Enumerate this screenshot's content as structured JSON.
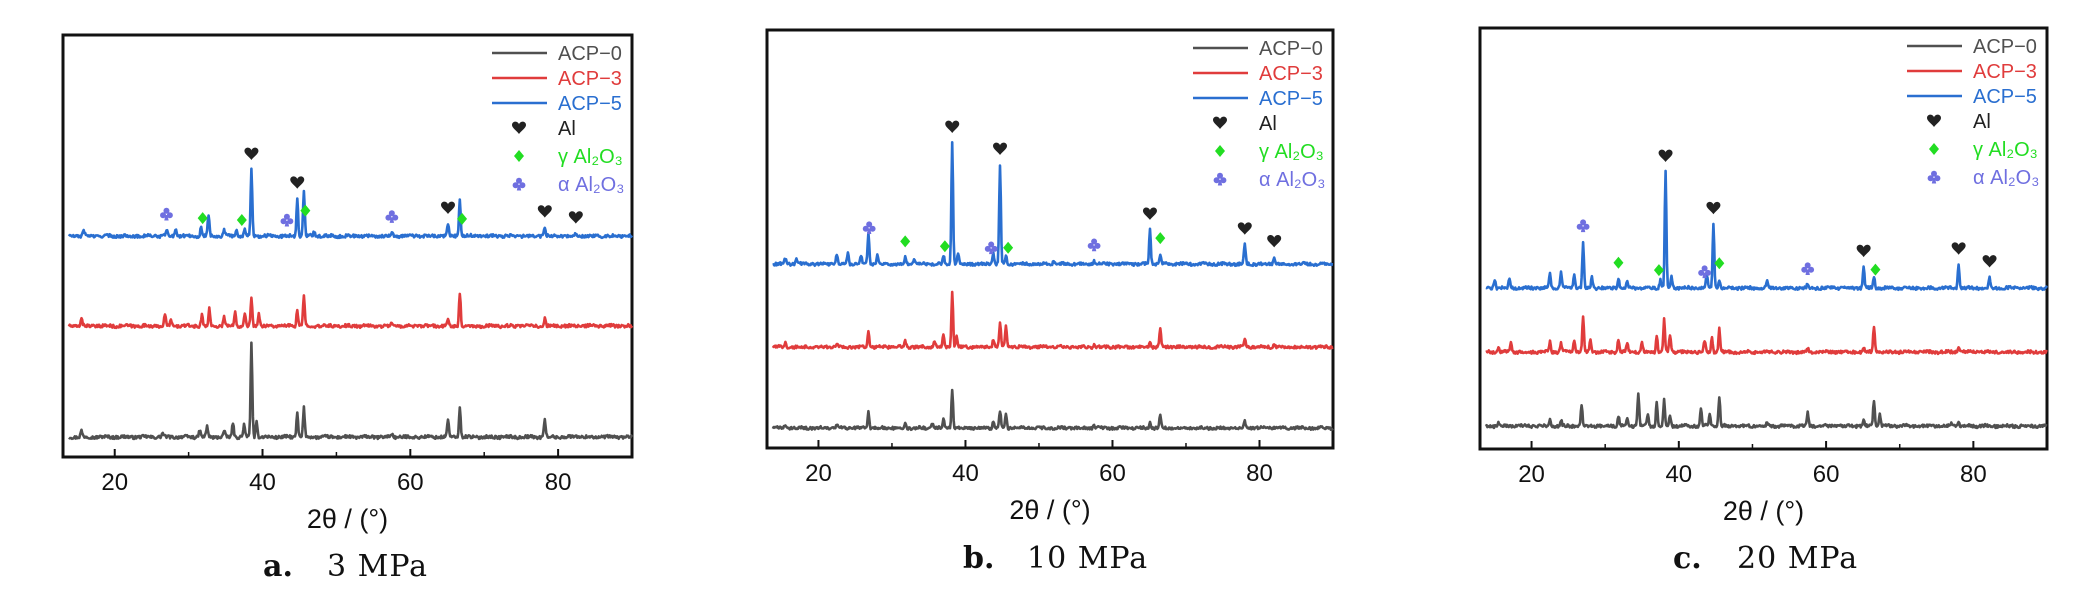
{
  "figure": {
    "x_title": "2θ / (°)"
  },
  "legend": {
    "series": [
      {
        "label": "ACP−0",
        "color": "#505050"
      },
      {
        "label": "ACP−3",
        "color": "#e03c3c"
      },
      {
        "label": "ACP−5",
        "color": "#2a6fd0"
      }
    ],
    "phases": [
      {
        "label": "Al",
        "icon": "heart-icon",
        "color": "#222222"
      },
      {
        "label": "γ Al₂O₃",
        "icon": "diamond-icon",
        "color": "#22dd22"
      },
      {
        "label": "α Al₂O₃",
        "icon": "club-icon",
        "color": "#6f6fe0"
      }
    ]
  },
  "chart_data": [
    {
      "type": "line",
      "panel_letter": "a.",
      "caption": "3 MPa",
      "xlabel": "2θ / (°)",
      "xlim": [
        13,
        90
      ],
      "xticks": [
        20,
        40,
        60,
        80
      ],
      "y_axis": "offset intensity, arbitrary units (no tick labels)",
      "series": [
        {
          "name": "ACP−0",
          "peaks": [
            [
              15.5,
              0.1
            ],
            [
              26.5,
              0.06
            ],
            [
              31.5,
              0.12
            ],
            [
              32.5,
              0.18
            ],
            [
              34.8,
              0.1
            ],
            [
              36.0,
              0.25
            ],
            [
              37.5,
              0.2
            ],
            [
              38.5,
              1.55
            ],
            [
              39.2,
              0.25
            ],
            [
              44.7,
              0.4
            ],
            [
              45.6,
              0.48
            ],
            [
              57.5,
              0.06
            ],
            [
              65.1,
              0.3
            ],
            [
              66.7,
              0.48
            ],
            [
              78.2,
              0.3
            ],
            [
              82.4,
              0.05
            ]
          ]
        },
        {
          "name": "ACP−3",
          "peaks": [
            [
              15.5,
              0.14
            ],
            [
              26.8,
              0.18
            ],
            [
              27.6,
              0.1
            ],
            [
              31.8,
              0.18
            ],
            [
              32.8,
              0.28
            ],
            [
              34.8,
              0.16
            ],
            [
              36.3,
              0.26
            ],
            [
              37.6,
              0.22
            ],
            [
              38.5,
              0.45
            ],
            [
              39.5,
              0.22
            ],
            [
              44.7,
              0.26
            ],
            [
              45.6,
              0.52
            ],
            [
              57.5,
              0.06
            ],
            [
              65.1,
              0.1
            ],
            [
              66.7,
              0.55
            ],
            [
              78.2,
              0.12
            ]
          ]
        },
        {
          "name": "ACP−5",
          "peaks": [
            [
              15.8,
              0.1
            ],
            [
              27.0,
              0.1
            ],
            [
              28.3,
              0.12
            ],
            [
              31.7,
              0.15
            ],
            [
              32.7,
              0.35
            ],
            [
              34.8,
              0.1
            ],
            [
              36.5,
              0.1
            ],
            [
              37.6,
              0.12
            ],
            [
              38.5,
              1.1
            ],
            [
              44.7,
              0.62
            ],
            [
              45.6,
              0.75
            ],
            [
              47.0,
              0.08
            ],
            [
              57.5,
              0.06
            ],
            [
              65.1,
              0.2
            ],
            [
              66.7,
              0.6
            ],
            [
              78.2,
              0.14
            ],
            [
              82.4,
              0.04
            ]
          ]
        }
      ],
      "markers": [
        {
          "phase": "Al",
          "x": [
            38.5,
            44.7,
            65.1,
            78.2,
            82.4
          ]
        },
        {
          "phase": "γ Al₂O₃",
          "x": [
            31.9,
            37.2,
            45.8,
            67.0
          ]
        },
        {
          "phase": "α Al₂O₃",
          "x": [
            27.0,
            43.3,
            57.5
          ]
        }
      ]
    },
    {
      "type": "line",
      "panel_letter": "b.",
      "caption": "10 MPa",
      "xlabel": "2θ / (°)",
      "xlim": [
        13,
        90
      ],
      "xticks": [
        20,
        40,
        60,
        80
      ],
      "y_axis": "offset intensity, arbitrary units (no tick labels)",
      "series": [
        {
          "name": "ACP−0",
          "peaks": [
            [
              15.5,
              0.06
            ],
            [
              22.5,
              0.05
            ],
            [
              26.8,
              0.3
            ],
            [
              31.8,
              0.1
            ],
            [
              35.5,
              0.1
            ],
            [
              37.0,
              0.15
            ],
            [
              38.2,
              0.7
            ],
            [
              43.8,
              0.12
            ],
            [
              44.7,
              0.3
            ],
            [
              45.5,
              0.28
            ],
            [
              57.5,
              0.06
            ],
            [
              65.1,
              0.1
            ],
            [
              66.5,
              0.25
            ],
            [
              78.0,
              0.12
            ]
          ]
        },
        {
          "name": "ACP−3",
          "peaks": [
            [
              15.5,
              0.08
            ],
            [
              22.5,
              0.06
            ],
            [
              26.8,
              0.3
            ],
            [
              31.8,
              0.12
            ],
            [
              35.8,
              0.12
            ],
            [
              37.0,
              0.22
            ],
            [
              38.2,
              1.0
            ],
            [
              38.8,
              0.2
            ],
            [
              43.8,
              0.15
            ],
            [
              44.7,
              0.45
            ],
            [
              45.5,
              0.4
            ],
            [
              57.5,
              0.05
            ],
            [
              65.1,
              0.1
            ],
            [
              66.5,
              0.35
            ],
            [
              78.0,
              0.15
            ],
            [
              82.0,
              0.04
            ]
          ]
        },
        {
          "name": "ACP−5",
          "peaks": [
            [
              15.5,
              0.1
            ],
            [
              17.0,
              0.08
            ],
            [
              22.5,
              0.18
            ],
            [
              24.0,
              0.2
            ],
            [
              25.8,
              0.16
            ],
            [
              26.8,
              0.55
            ],
            [
              28.0,
              0.15
            ],
            [
              31.8,
              0.12
            ],
            [
              33.0,
              0.1
            ],
            [
              37.0,
              0.15
            ],
            [
              38.2,
              2.2
            ],
            [
              39.0,
              0.2
            ],
            [
              43.8,
              0.2
            ],
            [
              44.7,
              1.8
            ],
            [
              45.5,
              0.15
            ],
            [
              52.0,
              0.05
            ],
            [
              57.5,
              0.06
            ],
            [
              65.1,
              0.62
            ],
            [
              66.5,
              0.18
            ],
            [
              78.0,
              0.35
            ],
            [
              82.0,
              0.12
            ]
          ]
        }
      ],
      "markers": [
        {
          "phase": "Al",
          "x": [
            38.2,
            44.7,
            65.1,
            78.0,
            82.0
          ]
        },
        {
          "phase": "γ Al₂O₃",
          "x": [
            31.8,
            37.2,
            45.8,
            66.5
          ]
        },
        {
          "phase": "α Al₂O₃",
          "x": [
            26.9,
            43.5,
            57.5
          ]
        }
      ]
    },
    {
      "type": "line",
      "panel_letter": "c.",
      "caption": "20 MPa",
      "xlabel": "2θ / (°)",
      "xlim": [
        13,
        90
      ],
      "xticks": [
        20,
        40,
        60,
        80
      ],
      "y_axis": "offset intensity, arbitrary units (no tick labels)",
      "series": [
        {
          "name": "ACP−0",
          "peaks": [
            [
              15.5,
              0.06
            ],
            [
              22.5,
              0.1
            ],
            [
              24.0,
              0.1
            ],
            [
              26.8,
              0.35
            ],
            [
              31.8,
              0.18
            ],
            [
              33.0,
              0.15
            ],
            [
              34.5,
              0.55
            ],
            [
              35.8,
              0.2
            ],
            [
              37.0,
              0.4
            ],
            [
              38.0,
              0.45
            ],
            [
              38.8,
              0.2
            ],
            [
              43.0,
              0.3
            ],
            [
              44.2,
              0.2
            ],
            [
              45.5,
              0.48
            ],
            [
              52.0,
              0.05
            ],
            [
              57.5,
              0.22
            ],
            [
              65.1,
              0.1
            ],
            [
              66.5,
              0.45
            ],
            [
              67.3,
              0.2
            ],
            [
              77.0,
              0.05
            ],
            [
              78.0,
              0.06
            ]
          ]
        },
        {
          "name": "ACP−3",
          "peaks": [
            [
              15.5,
              0.1
            ],
            [
              17.2,
              0.15
            ],
            [
              22.5,
              0.18
            ],
            [
              24.0,
              0.15
            ],
            [
              25.8,
              0.2
            ],
            [
              27.0,
              0.6
            ],
            [
              28.0,
              0.2
            ],
            [
              31.8,
              0.22
            ],
            [
              33.0,
              0.15
            ],
            [
              35.0,
              0.15
            ],
            [
              37.0,
              0.28
            ],
            [
              38.0,
              0.55
            ],
            [
              38.8,
              0.3
            ],
            [
              43.5,
              0.2
            ],
            [
              44.5,
              0.25
            ],
            [
              45.5,
              0.4
            ],
            [
              57.5,
              0.06
            ],
            [
              65.1,
              0.08
            ],
            [
              66.5,
              0.45
            ],
            [
              78.0,
              0.1
            ]
          ]
        },
        {
          "name": "ACP−5",
          "peaks": [
            [
              15.0,
              0.14
            ],
            [
              17.0,
              0.16
            ],
            [
              22.5,
              0.25
            ],
            [
              24.0,
              0.28
            ],
            [
              25.8,
              0.22
            ],
            [
              27.0,
              0.8
            ],
            [
              28.2,
              0.18
            ],
            [
              31.8,
              0.16
            ],
            [
              33.0,
              0.1
            ],
            [
              37.5,
              0.15
            ],
            [
              38.2,
              2.0
            ],
            [
              39.0,
              0.2
            ],
            [
              43.8,
              0.22
            ],
            [
              44.7,
              1.1
            ],
            [
              45.5,
              0.15
            ],
            [
              52.0,
              0.1
            ],
            [
              57.5,
              0.06
            ],
            [
              65.1,
              0.36
            ],
            [
              66.5,
              0.2
            ],
            [
              78.0,
              0.4
            ],
            [
              82.2,
              0.18
            ]
          ]
        }
      ],
      "markers": [
        {
          "phase": "Al",
          "x": [
            38.2,
            44.7,
            65.1,
            78.0,
            82.2
          ]
        },
        {
          "phase": "γ Al₂O₃",
          "x": [
            31.8,
            37.3,
            45.5,
            66.7
          ]
        },
        {
          "phase": "α Al₂O₃",
          "x": [
            27.0,
            43.5,
            57.5
          ]
        }
      ]
    }
  ]
}
